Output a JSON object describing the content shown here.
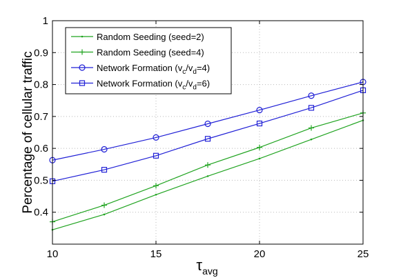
{
  "chart_data": {
    "type": "line",
    "title": "",
    "xlabel": "τ",
    "xlabel_sub": "avg",
    "ylabel": "Percentage of cellular traffic",
    "xlim": [
      10,
      25
    ],
    "ylim": [
      0.3,
      1
    ],
    "xticks": [
      10,
      15,
      20,
      25
    ],
    "yticks": [
      0.4,
      0.5,
      0.6,
      0.7,
      0.8,
      0.9,
      1
    ],
    "ytick_labels": [
      "0.4",
      "0.5",
      "0.6",
      "0.7",
      "0.8",
      "0.9",
      "1"
    ],
    "grid": true,
    "legend_position": "top-left",
    "x": [
      10,
      12.5,
      15,
      17.5,
      20,
      22.5,
      25
    ],
    "series": [
      {
        "name": "Random Seeding (seed=2)",
        "legend_main": "Random Seeding (seed=2)",
        "legend_sub1": "",
        "legend_mid": "",
        "legend_sub2": "",
        "legend_end": "",
        "color": "#1fa31f",
        "marker": "dot",
        "values": [
          0.345,
          0.393,
          0.455,
          0.513,
          0.568,
          0.628,
          0.688
        ]
      },
      {
        "name": "Random Seeding (seed=4)",
        "legend_main": "Random Seeding (seed=4)",
        "legend_sub1": "",
        "legend_mid": "",
        "legend_sub2": "",
        "legend_end": "",
        "color": "#1fa31f",
        "marker": "plus",
        "values": [
          0.37,
          0.422,
          0.483,
          0.548,
          0.603,
          0.664,
          0.711
        ]
      },
      {
        "name": "Network Formation (vc/vd=4)",
        "legend_main": "Network Formation (v",
        "legend_sub1": "c",
        "legend_mid": "/v",
        "legend_sub2": "d",
        "legend_end": "=4)",
        "color": "#1f1fd6",
        "marker": "circle",
        "values": [
          0.563,
          0.597,
          0.634,
          0.677,
          0.72,
          0.765,
          0.808
        ]
      },
      {
        "name": "Network Formation (vc/vd=6)",
        "legend_main": "Network Formation (v",
        "legend_sub1": "c",
        "legend_mid": "/v",
        "legend_sub2": "d",
        "legend_end": "=6)",
        "color": "#1f1fd6",
        "marker": "square",
        "values": [
          0.497,
          0.533,
          0.577,
          0.63,
          0.678,
          0.727,
          0.782
        ]
      }
    ]
  }
}
